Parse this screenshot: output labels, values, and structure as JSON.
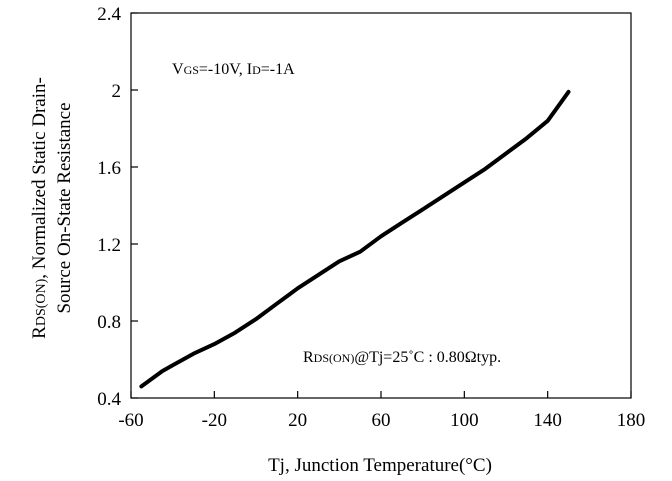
{
  "chart_data": {
    "type": "line",
    "title": "",
    "xlabel": "Tj, Junction Temperature(°C)",
    "ylabel_line1": "RDS(ON), Normalized Static Drain-",
    "ylabel_line2": "Source On-State Resistance",
    "xlim": [
      -60,
      180
    ],
    "ylim": [
      0.4,
      2.4
    ],
    "x_ticks": [
      -60,
      -20,
      20,
      60,
      100,
      140,
      180
    ],
    "y_ticks": [
      0.4,
      0.8,
      1.2,
      1.6,
      2.0,
      2.4
    ],
    "x_tick_labels": [
      "-60",
      "-20",
      "20",
      "60",
      "100",
      "140",
      "180"
    ],
    "y_tick_labels": [
      "0.4",
      "0.8",
      "1.2",
      "1.6",
      "2",
      "2.4"
    ],
    "grid": false,
    "series": [
      {
        "x": [
          -55,
          -45,
          -40,
          -30,
          -20,
          -10,
          0,
          10,
          15,
          20,
          30,
          40,
          50,
          60,
          70,
          80,
          90,
          100,
          110,
          120,
          130,
          140,
          150
        ],
        "y": [
          0.46,
          0.54,
          0.57,
          0.63,
          0.68,
          0.74,
          0.81,
          0.89,
          0.93,
          0.97,
          1.04,
          1.11,
          1.16,
          1.24,
          1.31,
          1.38,
          1.45,
          1.52,
          1.59,
          1.67,
          1.75,
          1.84,
          1.99
        ],
        "color": "#000000"
      }
    ],
    "annotations": {
      "conditions": "VGS=-10V, ID=-1A",
      "typical": "RDS(ON)@Tj=25˚C : 0.80Ωtyp."
    }
  }
}
